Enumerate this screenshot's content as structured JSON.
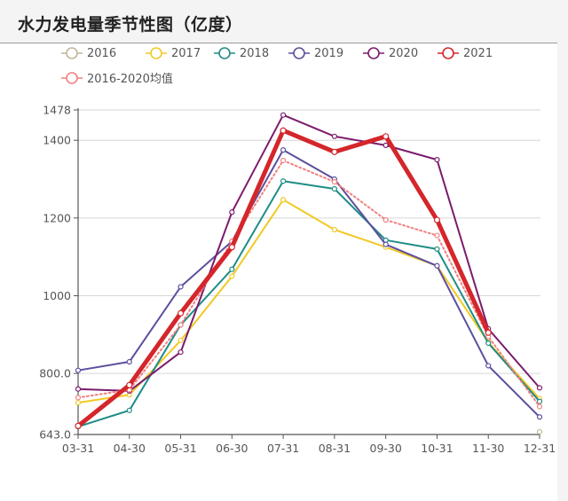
{
  "header": {
    "title": "水力发电量季节性图（亿度）"
  },
  "legend": [
    {
      "name": "2016",
      "color": "#c2b79a"
    },
    {
      "name": "2017",
      "color": "#f2c824"
    },
    {
      "name": "2018",
      "color": "#1e8c86"
    },
    {
      "name": "2019",
      "color": "#5b4f9e"
    },
    {
      "name": "2020",
      "color": "#7b1c6c"
    },
    {
      "name": "2021",
      "color": "#d4262b"
    },
    {
      "name": "2016-2020均值",
      "color": "#f08080"
    }
  ],
  "chart_data": {
    "type": "line",
    "title": "水力发电量季节性图（亿度）",
    "xlabel": "",
    "ylabel": "",
    "categories": [
      "03-31",
      "04-30",
      "05-31",
      "06-30",
      "07-31",
      "08-31",
      "09-30",
      "10-31",
      "11-30",
      "12-31"
    ],
    "ylim": [
      643.0,
      1478
    ],
    "yticks": [
      "643.0",
      "800.0",
      "1000",
      "1200",
      "1400",
      "1478"
    ],
    "ytick_values": [
      643,
      800,
      1000,
      1200,
      1400,
      1478
    ],
    "grid": true,
    "legend_position": "top",
    "series": [
      {
        "name": "2016",
        "color": "#c2b79a",
        "style": "solid",
        "width": 1.5,
        "values": [
          665,
          null,
          null,
          null,
          null,
          null,
          null,
          null,
          null,
          650
        ]
      },
      {
        "name": "2017",
        "color": "#f2c824",
        "style": "solid",
        "width": 2,
        "values": [
          725,
          745,
          885,
          1050,
          1247,
          1170,
          1125,
          1077,
          880,
          735
        ]
      },
      {
        "name": "2018",
        "color": "#1e8c86",
        "style": "solid",
        "width": 2,
        "values": [
          663,
          705,
          925,
          1068,
          1295,
          1275,
          1143,
          1120,
          878,
          728
        ]
      },
      {
        "name": "2019",
        "color": "#5b4f9e",
        "style": "solid",
        "width": 2,
        "values": [
          808,
          830,
          1023,
          1140,
          1375,
          1300,
          1132,
          1077,
          820,
          688
        ]
      },
      {
        "name": "2020",
        "color": "#7b1c6c",
        "style": "solid",
        "width": 2,
        "values": [
          760,
          755,
          855,
          1215,
          1465,
          1410,
          1387,
          1350,
          915,
          763
        ]
      },
      {
        "name": "2021",
        "color": "#d4262b",
        "style": "solid",
        "width": 5,
        "values": [
          665,
          770,
          955,
          1125,
          1425,
          1370,
          1410,
          1195,
          905,
          null
        ]
      },
      {
        "name": "2016-2020均值",
        "color": "#f08080",
        "style": "dotted",
        "width": 2,
        "values": [
          738,
          758,
          925,
          1140,
          1348,
          1293,
          1195,
          1155,
          895,
          715
        ]
      }
    ]
  }
}
